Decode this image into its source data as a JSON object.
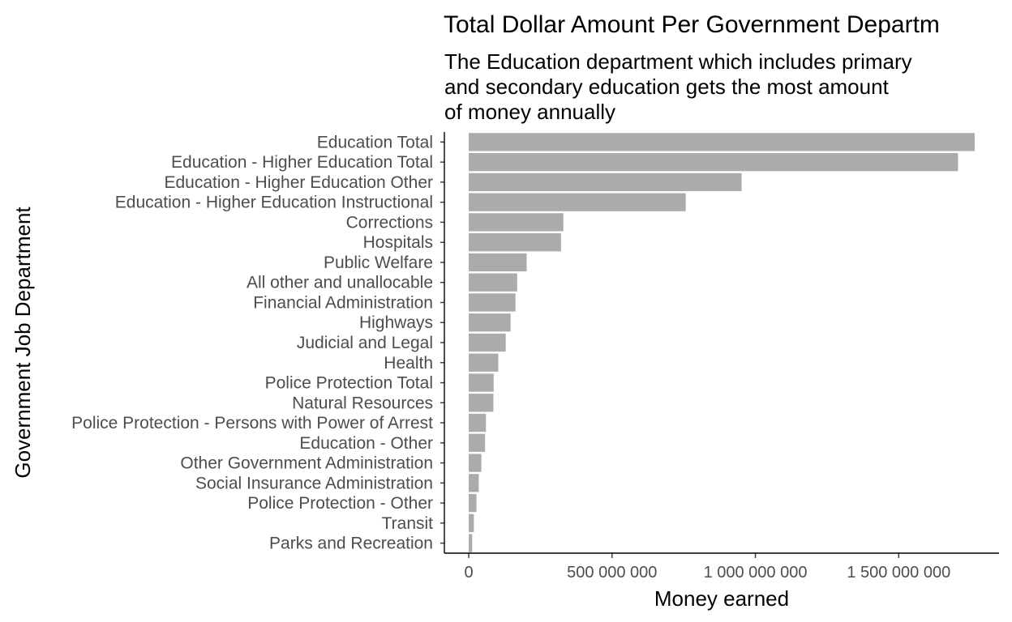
{
  "chart_data": {
    "type": "bar",
    "orientation": "horizontal",
    "title": "Total Dollar Amount Per Government Departm",
    "subtitle_lines": [
      "The Education department which includes primary",
      "and secondary education gets the most amount",
      "of money annually"
    ],
    "xlabel": "Money earned",
    "ylabel": "Government Job Department",
    "xlim": [
      -85000000,
      1850000000
    ],
    "x_ticks": [
      {
        "value": 0,
        "label": "0"
      },
      {
        "value": 500000000,
        "label": "500 000 000"
      },
      {
        "value": 1000000000,
        "label": "1 000 000 000"
      },
      {
        "value": 1500000000,
        "label": "1 500 000 000"
      }
    ],
    "bar_color": "#ababab",
    "grid": false,
    "categories": [
      "Education Total",
      "Education - Higher Education Total",
      "Education - Higher Education Other",
      "Education - Higher Education Instructional",
      "Corrections",
      "Hospitals",
      "Public Welfare",
      "All other and unallocable",
      "Financial Administration",
      "Highways",
      "Judicial and Legal",
      "Health",
      "Police Protection Total",
      "Natural Resources",
      "Police Protection - Persons with Power of Arrest",
      "Education - Other",
      "Other Government Administration",
      "Social Insurance Administration",
      "Police Protection - Other",
      "Transit",
      "Parks and Recreation"
    ],
    "values": [
      1765000000,
      1707000000,
      952000000,
      757000000,
      330000000,
      322000000,
      202000000,
      169000000,
      163000000,
      146000000,
      129000000,
      103000000,
      87000000,
      86000000,
      60000000,
      57000000,
      44000000,
      35000000,
      27000000,
      18000000,
      12000000
    ]
  }
}
